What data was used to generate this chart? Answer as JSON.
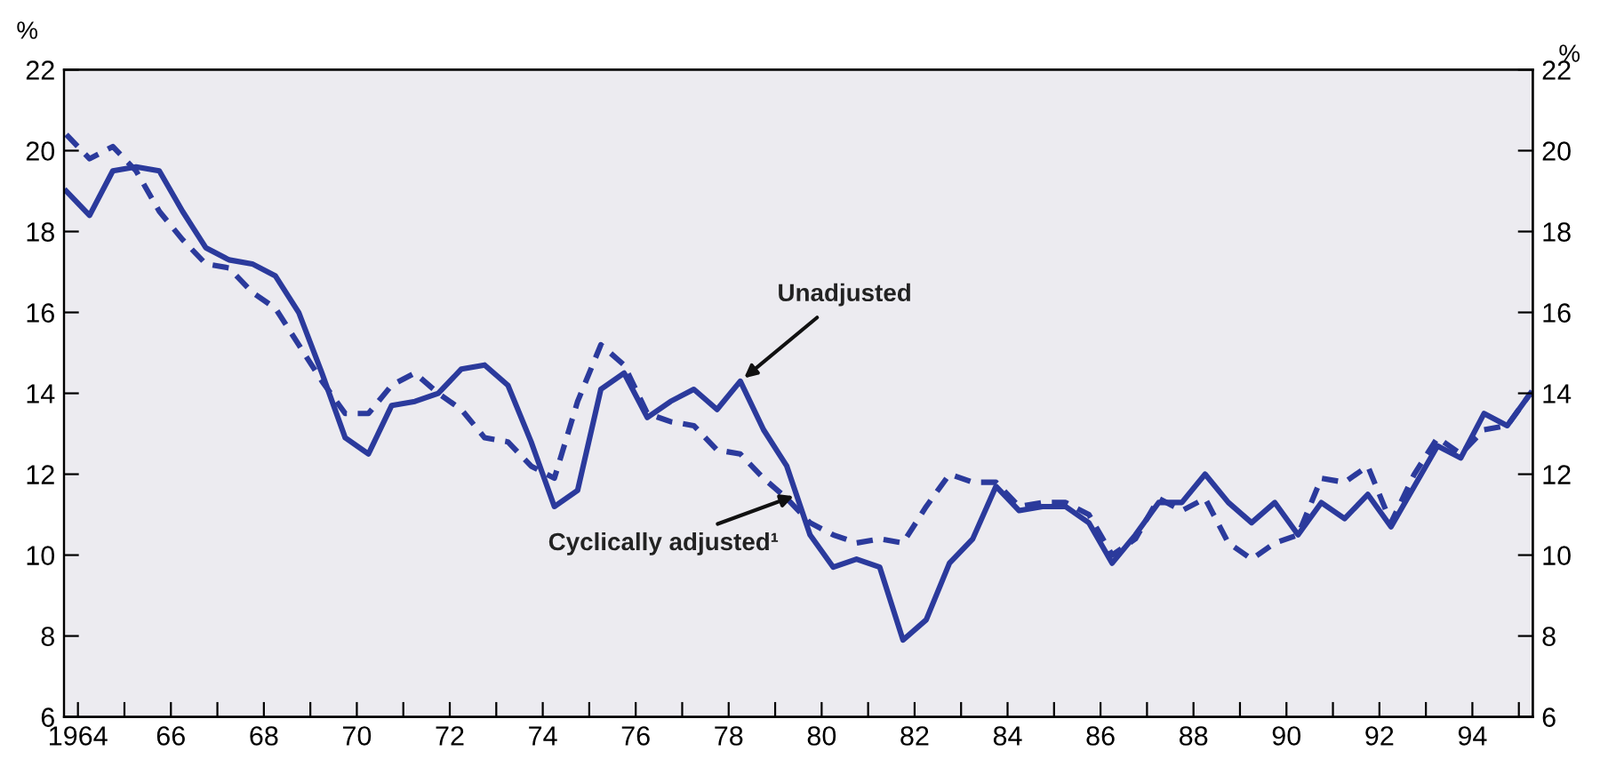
{
  "chart_data": {
    "type": "line",
    "ylabel": "%",
    "y2label": "%",
    "xlim": [
      1963.7,
      1995.3
    ],
    "xticks": [
      {
        "value": 1964,
        "label": "1964"
      },
      {
        "value": 1965,
        "label": null
      },
      {
        "value": 1966,
        "label": "66"
      },
      {
        "value": 1967,
        "label": null
      },
      {
        "value": 1968,
        "label": "68"
      },
      {
        "value": 1969,
        "label": null
      },
      {
        "value": 1970,
        "label": "70"
      },
      {
        "value": 1971,
        "label": null
      },
      {
        "value": 1972,
        "label": "72"
      },
      {
        "value": 1973,
        "label": null
      },
      {
        "value": 1974,
        "label": "74"
      },
      {
        "value": 1975,
        "label": null
      },
      {
        "value": 1976,
        "label": "76"
      },
      {
        "value": 1977,
        "label": null
      },
      {
        "value": 1978,
        "label": "78"
      },
      {
        "value": 1979,
        "label": null
      },
      {
        "value": 1980,
        "label": "80"
      },
      {
        "value": 1981,
        "label": null
      },
      {
        "value": 1982,
        "label": "82"
      },
      {
        "value": 1983,
        "label": null
      },
      {
        "value": 1984,
        "label": "84"
      },
      {
        "value": 1985,
        "label": null
      },
      {
        "value": 1986,
        "label": "86"
      },
      {
        "value": 1987,
        "label": null
      },
      {
        "value": 1988,
        "label": "88"
      },
      {
        "value": 1989,
        "label": null
      },
      {
        "value": 1990,
        "label": "90"
      },
      {
        "value": 1991,
        "label": null
      },
      {
        "value": 1992,
        "label": "92"
      },
      {
        "value": 1993,
        "label": null
      },
      {
        "value": 1994,
        "label": "94"
      },
      {
        "value": 1995,
        "label": null
      }
    ],
    "ylim": [
      6,
      22
    ],
    "yticks": [
      6,
      8,
      10,
      12,
      14,
      16,
      18,
      20,
      22
    ],
    "y2lim": [
      6,
      22
    ],
    "y2ticks": [
      6,
      8,
      10,
      12,
      14,
      16,
      18,
      20,
      22
    ],
    "grid": false,
    "legend": false,
    "x": [
      1963.75,
      1964.25,
      1964.75,
      1965.25,
      1965.75,
      1966.25,
      1966.75,
      1967.25,
      1967.75,
      1968.25,
      1968.75,
      1969.25,
      1969.75,
      1970.25,
      1970.75,
      1971.25,
      1971.75,
      1972.25,
      1972.75,
      1973.25,
      1973.75,
      1974.25,
      1974.75,
      1975.25,
      1975.75,
      1976.25,
      1976.75,
      1977.25,
      1977.75,
      1978.25,
      1978.75,
      1979.25,
      1979.75,
      1980.25,
      1980.75,
      1981.25,
      1981.75,
      1982.25,
      1982.75,
      1983.25,
      1983.75,
      1984.25,
      1984.75,
      1985.25,
      1985.75,
      1986.25,
      1986.75,
      1987.25,
      1987.75,
      1988.25,
      1988.75,
      1989.25,
      1989.75,
      1990.25,
      1990.75,
      1991.25,
      1991.75,
      1992.25,
      1992.75,
      1993.25,
      1993.75,
      1994.25,
      1994.75,
      1995.25
    ],
    "series": [
      {
        "color": "#2b3a9c",
        "line_style": "solid",
        "values": [
          19.0,
          18.4,
          19.5,
          19.6,
          19.5,
          18.5,
          17.6,
          17.3,
          17.2,
          16.9,
          16.0,
          14.5,
          12.9,
          12.5,
          13.7,
          13.8,
          14.0,
          14.6,
          14.7,
          14.2,
          12.8,
          11.2,
          11.6,
          14.1,
          14.5,
          13.4,
          13.8,
          14.1,
          13.6,
          14.3,
          13.1,
          12.2,
          10.5,
          9.7,
          9.9,
          9.7,
          7.9,
          8.4,
          9.8,
          10.4,
          11.7,
          11.1,
          11.2,
          11.2,
          10.8,
          9.8,
          10.5,
          11.3,
          11.3,
          12.0,
          11.3,
          10.8,
          11.3,
          10.5,
          11.3,
          10.9,
          11.5,
          10.7,
          11.7,
          12.7,
          12.4,
          13.5,
          13.2,
          14.0
        ]
      },
      {
        "color": "#2b3a9c",
        "line_style": "dashed",
        "values": [
          20.4,
          19.8,
          20.1,
          19.5,
          18.5,
          17.8,
          17.2,
          17.1,
          16.5,
          16.1,
          15.2,
          14.3,
          13.5,
          13.5,
          14.2,
          14.5,
          14.0,
          13.6,
          12.9,
          12.8,
          12.2,
          11.9,
          13.8,
          15.2,
          14.7,
          13.5,
          13.3,
          13.2,
          12.6,
          12.5,
          11.9,
          11.4,
          10.8,
          10.5,
          10.3,
          10.4,
          10.3,
          11.2,
          12.0,
          11.8,
          11.8,
          11.2,
          11.3,
          11.3,
          11.0,
          10.0,
          10.4,
          11.4,
          11.1,
          11.4,
          10.3,
          9.9,
          10.3,
          10.5,
          11.9,
          11.8,
          12.2,
          10.8,
          12.0,
          12.9,
          12.5,
          13.1,
          13.2,
          14.0
        ]
      }
    ],
    "annotations": [
      {
        "text": "Unadjusted",
        "x": 1978.25,
        "y": 14.3
      },
      {
        "text": "Cyclically adjusted¹",
        "x": 1979.5,
        "y": 11.5
      }
    ]
  }
}
